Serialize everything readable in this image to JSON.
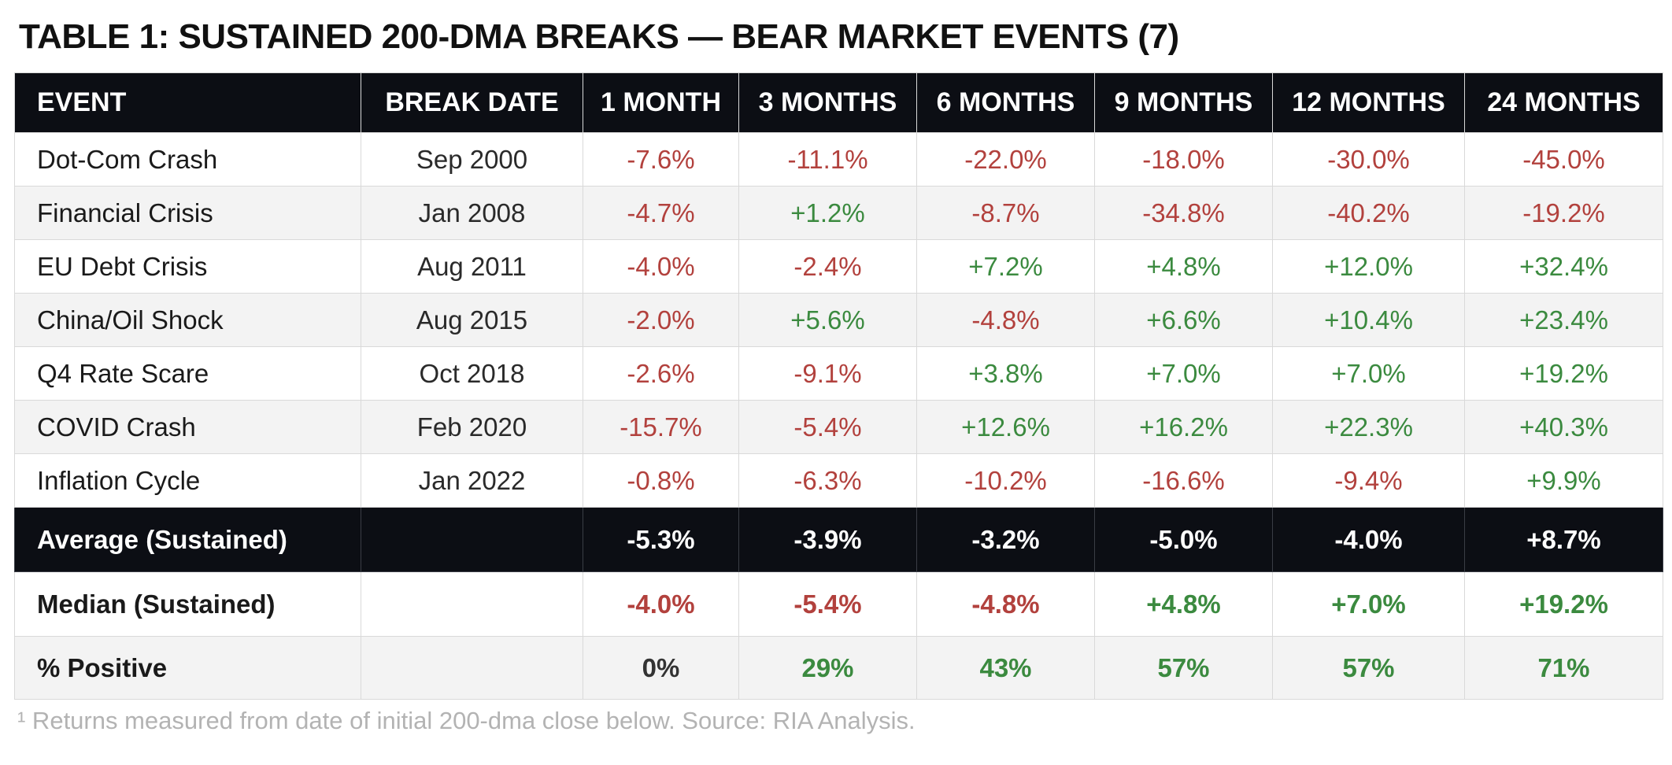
{
  "title": "TABLE 1: SUSTAINED 200-DMA BREAKS — BEAR MARKET EVENTS (7)",
  "headers": [
    "EVENT",
    "BREAK DATE",
    "1 MONTH",
    "3 MONTHS",
    "6 MONTHS",
    "9 MONTHS",
    "12 MONTHS",
    "24 MONTHS"
  ],
  "rows": [
    {
      "event": "Dot-Com Crash",
      "date": "Sep 2000",
      "values": [
        "-7.6%",
        "-11.1%",
        "-22.0%",
        "-18.0%",
        "-30.0%",
        "-45.0%"
      ]
    },
    {
      "event": "Financial Crisis",
      "date": "Jan 2008",
      "values": [
        "-4.7%",
        "+1.2%",
        "-8.7%",
        "-34.8%",
        "-40.2%",
        "-19.2%"
      ]
    },
    {
      "event": "EU Debt Crisis",
      "date": "Aug 2011",
      "values": [
        "-4.0%",
        "-2.4%",
        "+7.2%",
        "+4.8%",
        "+12.0%",
        "+32.4%"
      ]
    },
    {
      "event": "China/Oil Shock",
      "date": "Aug 2015",
      "values": [
        "-2.0%",
        "+5.6%",
        "-4.8%",
        "+6.6%",
        "+10.4%",
        "+23.4%"
      ]
    },
    {
      "event": "Q4 Rate Scare",
      "date": "Oct 2018",
      "values": [
        "-2.6%",
        "-9.1%",
        "+3.8%",
        "+7.0%",
        "+7.0%",
        "+19.2%"
      ]
    },
    {
      "event": "COVID Crash",
      "date": "Feb 2020",
      "values": [
        "-15.7%",
        "-5.4%",
        "+12.6%",
        "+16.2%",
        "+22.3%",
        "+40.3%"
      ]
    },
    {
      "event": "Inflation Cycle",
      "date": "Jan 2022",
      "values": [
        "-0.8%",
        "-6.3%",
        "-10.2%",
        "-16.6%",
        "-9.4%",
        "+9.9%"
      ]
    }
  ],
  "average": {
    "label": "Average (Sustained)",
    "values": [
      "-5.3%",
      "-3.9%",
      "-3.2%",
      "-5.0%",
      "-4.0%",
      "+8.7%"
    ]
  },
  "median": {
    "label": "Median (Sustained)",
    "values": [
      "-4.0%",
      "-5.4%",
      "-4.8%",
      "+4.8%",
      "+7.0%",
      "+19.2%"
    ]
  },
  "percent_positive": {
    "label": "% Positive",
    "values": [
      "0%",
      "29%",
      "43%",
      "57%",
      "57%",
      "71%"
    ]
  },
  "footnote": "¹ Returns measured from date of initial 200-dma close below. Source: RIA Analysis.",
  "colors": {
    "negative": "#b2413d",
    "positive": "#3b8a3f",
    "neutral": "#333333",
    "header_bg": "#0c0e14"
  }
}
